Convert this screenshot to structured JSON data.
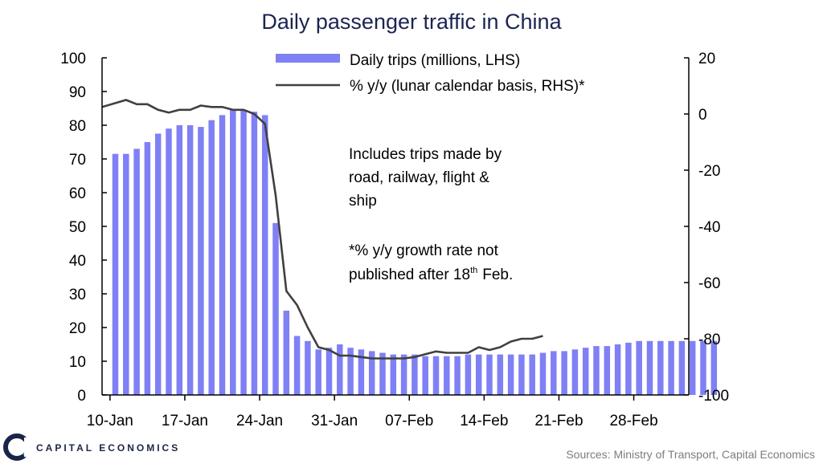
{
  "chart_data": {
    "type": "bar",
    "title": "Daily passenger traffic in China",
    "x_tick_labels": [
      "10-Jan",
      "17-Jan",
      "24-Jan",
      "31-Jan",
      "07-Feb",
      "14-Feb",
      "21-Feb",
      "28-Feb"
    ],
    "x_start_label": "10-Jan",
    "left_axis": {
      "ylim": [
        0,
        100
      ],
      "ticks": [
        0,
        10,
        20,
        30,
        40,
        50,
        60,
        70,
        80,
        90,
        100
      ]
    },
    "right_axis": {
      "ylim": [
        -100,
        20
      ],
      "ticks": [
        "20",
        "0",
        "-20",
        "-40",
        "-60",
        "-80",
        "-100"
      ]
    },
    "grid": false,
    "legend_position": "top",
    "bar_color": "#8080f5",
    "line_color": "#404040",
    "series": [
      {
        "name": "Daily trips (millions, LHS)",
        "type": "bar",
        "axis": "left",
        "values": [
          71.5,
          71.5,
          73,
          75,
          77.5,
          79,
          80,
          80,
          79.5,
          81.5,
          83,
          84.5,
          84.5,
          84,
          83,
          51,
          25,
          17.5,
          16,
          13.5,
          14,
          15,
          14,
          13.5,
          13,
          12.5,
          12,
          12,
          12,
          11.5,
          11.5,
          11.5,
          11.5,
          12,
          12,
          12,
          12,
          12,
          12,
          12,
          12.5,
          13,
          13,
          13.5,
          14,
          14.5,
          14.5,
          15,
          15.5,
          16,
          16,
          16,
          16,
          16,
          16,
          16,
          16
        ]
      },
      {
        "name": "% y/y (lunar calendar basis, RHS)*",
        "type": "line",
        "axis": "right",
        "values": [
          2.5,
          5,
          3.5,
          3.5,
          1.5,
          0.5,
          1.5,
          1.5,
          3,
          2.5,
          2.5,
          1.5,
          1.5,
          0,
          -3.5,
          -29,
          -63,
          -68,
          -76,
          -83,
          -84,
          -86,
          -86,
          -86.5,
          -87,
          -87,
          -87,
          -87,
          -86.5,
          -85.5,
          -84.5,
          -85,
          -85,
          -85,
          -83,
          -84,
          -83,
          -81,
          -80,
          -80,
          -79
        ]
      }
    ],
    "annotations": [
      "Includes trips made by",
      "road, railway, flight &",
      "ship",
      "*% y/y growth rate not",
      "published after 18",
      "th",
      "Feb."
    ]
  },
  "footer": {
    "brand": "CAPITAL ECONOMICS",
    "source": "Sources: Ministry of Transport, Capital Economics"
  }
}
